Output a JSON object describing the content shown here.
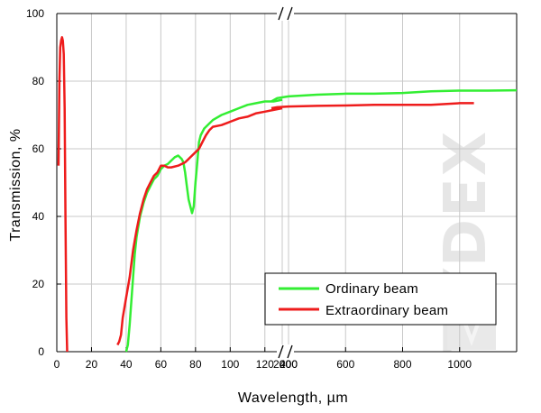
{
  "colors": {
    "ordinary": "#33ee33",
    "extraordinary": "#ee1c1c",
    "grid": "#c8c8c8",
    "watermark": "#e6e6e6"
  },
  "watermark_text": "TYDEX",
  "chart_data": {
    "type": "line",
    "xlabel": "Wavelength, µm",
    "ylabel": "Transmission, %",
    "ylim": [
      0,
      100
    ],
    "y_ticks": [
      0,
      20,
      40,
      60,
      80,
      100
    ],
    "grid": true,
    "legend_position": "bottom-right",
    "x_axis": {
      "broken": true,
      "segments": [
        {
          "range": [
            0,
            130
          ],
          "scale": "linear",
          "ticks": [
            0,
            20,
            40,
            60,
            80,
            100,
            120
          ]
        },
        {
          "range": [
            130,
            1000
          ],
          "scale": "linear",
          "ticks": [
            200,
            400,
            600,
            800,
            1000
          ]
        }
      ],
      "tick_labels": [
        "0",
        "20",
        "40",
        "60",
        "80",
        "100",
        "120",
        "200",
        "200",
        "400",
        "600",
        "800",
        "1000"
      ]
    },
    "series": [
      {
        "name": "Ordinary beam",
        "color": "#33ee33",
        "points": [
          [
            40,
            0
          ],
          [
            41,
            2
          ],
          [
            42,
            8
          ],
          [
            43,
            15
          ],
          [
            44,
            22
          ],
          [
            45,
            29
          ],
          [
            46,
            34
          ],
          [
            48,
            40
          ],
          [
            50,
            44
          ],
          [
            52,
            47
          ],
          [
            54,
            49
          ],
          [
            56,
            51
          ],
          [
            58,
            52
          ],
          [
            60,
            54
          ],
          [
            62,
            55
          ],
          [
            64,
            55.5
          ],
          [
            66,
            56.5
          ],
          [
            68,
            57.5
          ],
          [
            70,
            58
          ],
          [
            72,
            57
          ],
          [
            73,
            56
          ],
          [
            74,
            53
          ],
          [
            75,
            49
          ],
          [
            76,
            45
          ],
          [
            77,
            43
          ],
          [
            78,
            41
          ],
          [
            79,
            43
          ],
          [
            80,
            50
          ],
          [
            81,
            56
          ],
          [
            82,
            62
          ],
          [
            83,
            64
          ],
          [
            85,
            66
          ],
          [
            88,
            67.5
          ],
          [
            90,
            68.5
          ],
          [
            95,
            70
          ],
          [
            100,
            71
          ],
          [
            105,
            72
          ],
          [
            110,
            73
          ],
          [
            115,
            73.5
          ],
          [
            120,
            74
          ],
          [
            125,
            74
          ],
          [
            130,
            74.5
          ],
          [
            140,
            74
          ],
          [
            160,
            75
          ],
          [
            200,
            75.5
          ],
          [
            300,
            76
          ],
          [
            400,
            76.3
          ],
          [
            500,
            76.3
          ],
          [
            600,
            76.5
          ],
          [
            700,
            77
          ],
          [
            800,
            77.2
          ],
          [
            900,
            77.2
          ],
          [
            1000,
            77.3
          ]
        ]
      },
      {
        "name": "Extraordinary beam",
        "color": "#ee1c1c",
        "points": [
          [
            1,
            55
          ],
          [
            1.5,
            80
          ],
          [
            2,
            90
          ],
          [
            2.5,
            92
          ],
          [
            3,
            93
          ],
          [
            3.5,
            92
          ],
          [
            4,
            88
          ],
          [
            4.5,
            72
          ],
          [
            5,
            40
          ],
          [
            5.5,
            10
          ],
          [
            6,
            0
          ],
          [
            35,
            2
          ],
          [
            36,
            3
          ],
          [
            37,
            5
          ],
          [
            38,
            10
          ],
          [
            40,
            16
          ],
          [
            42,
            22
          ],
          [
            44,
            30
          ],
          [
            46,
            36
          ],
          [
            48,
            41
          ],
          [
            50,
            45
          ],
          [
            52,
            48
          ],
          [
            54,
            50
          ],
          [
            56,
            52
          ],
          [
            58,
            53
          ],
          [
            60,
            55
          ],
          [
            62,
            55
          ],
          [
            64,
            54.5
          ],
          [
            66,
            54.5
          ],
          [
            70,
            55
          ],
          [
            74,
            56
          ],
          [
            76,
            57
          ],
          [
            78,
            58
          ],
          [
            80,
            59
          ],
          [
            82,
            60
          ],
          [
            84,
            62
          ],
          [
            86,
            64
          ],
          [
            88,
            65.5
          ],
          [
            90,
            66.5
          ],
          [
            95,
            67
          ],
          [
            100,
            68
          ],
          [
            105,
            69
          ],
          [
            110,
            69.5
          ],
          [
            115,
            70.5
          ],
          [
            120,
            71
          ],
          [
            125,
            71.5
          ],
          [
            130,
            72
          ],
          [
            140,
            72
          ],
          [
            160,
            72.3
          ],
          [
            200,
            72.5
          ],
          [
            300,
            72.7
          ],
          [
            400,
            72.8
          ],
          [
            500,
            73
          ],
          [
            600,
            73
          ],
          [
            700,
            73
          ],
          [
            800,
            73.5
          ],
          [
            850,
            73.5
          ]
        ]
      }
    ]
  }
}
